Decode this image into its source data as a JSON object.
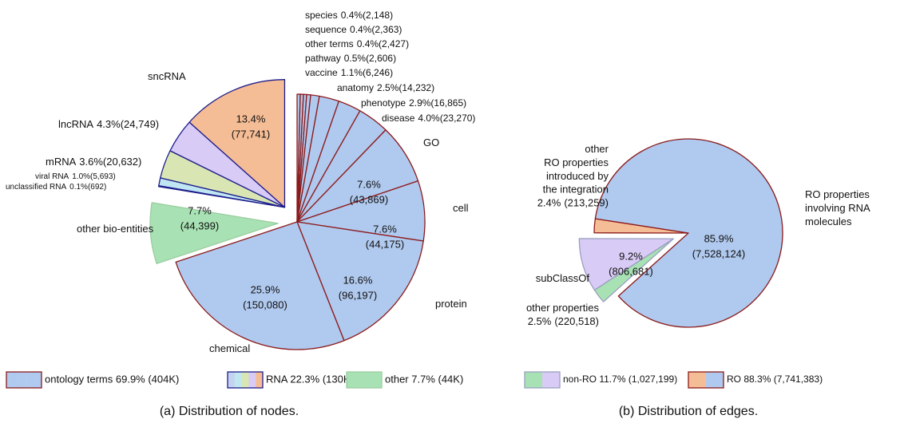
{
  "chart_data": [
    {
      "type": "pie",
      "caption": "(a) Distribution of nodes.",
      "series": [
        {
          "name": "ontology terms 69.9% (404K)",
          "color": "#8b1a1a",
          "categories": [
            "species",
            "sequence",
            "other terms",
            "pathway",
            "vaccine",
            "anatomy",
            "phenotype",
            "disease",
            "GO",
            "cell",
            "protein",
            "chemical"
          ],
          "values": [
            0.4,
            0.4,
            0.4,
            0.5,
            1.1,
            2.5,
            2.9,
            4.0,
            7.6,
            7.6,
            16.6,
            25.9
          ],
          "value_labels": [
            "0.4%",
            "0.4%",
            "0.4%",
            "0.5%",
            "1.1%",
            "2.5%",
            "2.9%",
            "4.0%",
            "7.6%",
            "7.6%",
            "16.6%",
            "25.9%"
          ],
          "count_labels": [
            "(2,148)",
            "(2,363)",
            "(2,427)",
            "(2,606)",
            "(6,246)",
            "(14,232)",
            "(16,865)",
            "(23,270)",
            "(43,869)",
            "(44,175)",
            "(96,197)",
            "(150,080)"
          ],
          "colors": [
            "#b0c9ee",
            "#b0c9ee",
            "#b0c9ee",
            "#b0c9ee",
            "#b0c9ee",
            "#b0c9ee",
            "#b0c9ee",
            "#b0c9ee",
            "#b0c9ee",
            "#b0c9ee",
            "#b0c9ee",
            "#b0c9ee"
          ]
        },
        {
          "name": "RNA 22.3% (130K)",
          "color": "#1c1c8c",
          "categories": [
            "unclassified RNA",
            "viral RNA",
            "mRNA",
            "lncRNA",
            "sncRNA"
          ],
          "values": [
            0.1,
            1.0,
            3.6,
            4.3,
            13.4
          ],
          "value_labels": [
            "0.1%",
            "1.0%",
            "3.6%",
            "4.3%",
            "13.4%"
          ],
          "count_labels": [
            "(692)",
            "(5,693)",
            "(20,632)",
            "(24,749)",
            "(77,741)"
          ],
          "colors": [
            "#c3d3f0",
            "#c0e6f2",
            "#d9e6b3",
            "#d8cbf5",
            "#f5bd95"
          ]
        },
        {
          "name": "other 7.7% (44K)",
          "color": "#9acd9f",
          "categories": [
            "other bio-entities"
          ],
          "values": [
            7.7
          ],
          "value_labels": [
            "7.7%"
          ],
          "count_labels": [
            "(44,399)"
          ],
          "colors": [
            "#a8e2b4"
          ]
        }
      ]
    },
    {
      "type": "pie",
      "caption": "(b) Distribution of edges.",
      "series": [
        {
          "name": "non-RO 11.7% (1,027,199)",
          "color": "#9aa0c0",
          "categories": [
            "other properties",
            "subClassOf"
          ],
          "values": [
            2.5,
            9.2
          ],
          "value_labels": [
            "2.5%",
            "9.2%"
          ],
          "count_labels": [
            "(220,518)",
            "(806,681)"
          ],
          "colors": [
            "#a8e2b4",
            "#d8cbf5"
          ]
        },
        {
          "name": "RO 88.3% (7,741,383)",
          "color": "#8b1a1a",
          "categories": [
            "other\nRO properties\nintroduced by\nthe integration",
            "RO properties\ninvolving RNA\nmolecules"
          ],
          "values": [
            2.4,
            85.9
          ],
          "value_labels": [
            "2.4%",
            "85.9%"
          ],
          "count_labels": [
            "(213,259)",
            "(7,528,124)"
          ],
          "colors": [
            "#f5bd95",
            "#b0c9ee"
          ]
        }
      ]
    }
  ]
}
